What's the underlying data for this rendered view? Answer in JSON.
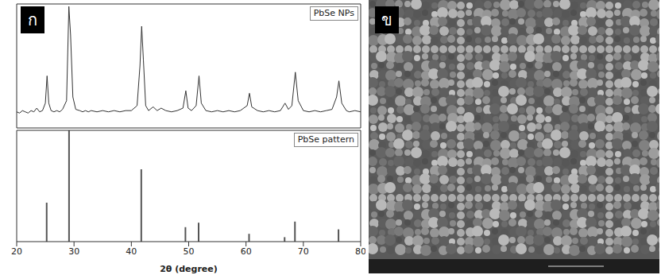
{
  "panels": [
    "ก",
    "ข"
  ],
  "chart_data": [
    {
      "type": "line",
      "xlim": [
        20,
        80
      ],
      "xticks": [
        20,
        30,
        40,
        50,
        60,
        70,
        80
      ],
      "ylim": [
        0,
        100
      ],
      "tick_labels": false,
      "legend": "upper right",
      "x": [
        20,
        20.5,
        21,
        21.5,
        22,
        22.5,
        23,
        23.5,
        24,
        24.5,
        25,
        25.3,
        25.6,
        26,
        26.5,
        27,
        27.5,
        28,
        28.7,
        29.1,
        29.4,
        29.8,
        30.3,
        31,
        31.5,
        32,
        32.5,
        33,
        34,
        35,
        36,
        37,
        38,
        39,
        40,
        41,
        41.5,
        41.8,
        42.1,
        42.5,
        43,
        43.8,
        44.5,
        45.2,
        46,
        47,
        48,
        49,
        49.5,
        49.9,
        50.5,
        51.3,
        51.8,
        52.2,
        53,
        54,
        55,
        56,
        57,
        58,
        59,
        60.2,
        60.6,
        61,
        62,
        63,
        64,
        65,
        66,
        66.8,
        67.4,
        68,
        68.6,
        69.1,
        70,
        71,
        72,
        73,
        74,
        75,
        75.8,
        76.2,
        76.7,
        77.5,
        78,
        79,
        80
      ],
      "series": [
        {
          "name": "PbSe NPs",
          "color": "#333333",
          "values": [
            13,
            12,
            14,
            13,
            12,
            14,
            13,
            16,
            13,
            14,
            20,
            42,
            20,
            14,
            13,
            14,
            13,
            15,
            22,
            98,
            75,
            25,
            15,
            14,
            13,
            14,
            13,
            14,
            13,
            14,
            13,
            14,
            13,
            14,
            14,
            18,
            50,
            82,
            55,
            18,
            14,
            17,
            14,
            16,
            14,
            13,
            14,
            16,
            30,
            16,
            14,
            18,
            42,
            20,
            14,
            13,
            14,
            13,
            14,
            13,
            14,
            18,
            28,
            17,
            14,
            13,
            14,
            13,
            14,
            20,
            15,
            18,
            45,
            22,
            14,
            13,
            14,
            13,
            14,
            15,
            25,
            38,
            20,
            14,
            13,
            14,
            13
          ]
        }
      ]
    },
    {
      "type": "bar",
      "xlabel": "2θ (degree)",
      "xlim": [
        20,
        80
      ],
      "xticks": [
        20,
        30,
        40,
        50,
        60,
        70,
        80
      ],
      "ylim": [
        0,
        100
      ],
      "tick_labels": "x",
      "legend": "upper right",
      "x": [
        25.3,
        29.2,
        41.8,
        49.5,
        51.8,
        60.6,
        66.8,
        68.6,
        76.2
      ],
      "series": [
        {
          "name": "PbSe pattern",
          "color": "#555555",
          "values": [
            35,
            100,
            65,
            13,
            17,
            7,
            4,
            18,
            11
          ]
        }
      ]
    }
  ]
}
